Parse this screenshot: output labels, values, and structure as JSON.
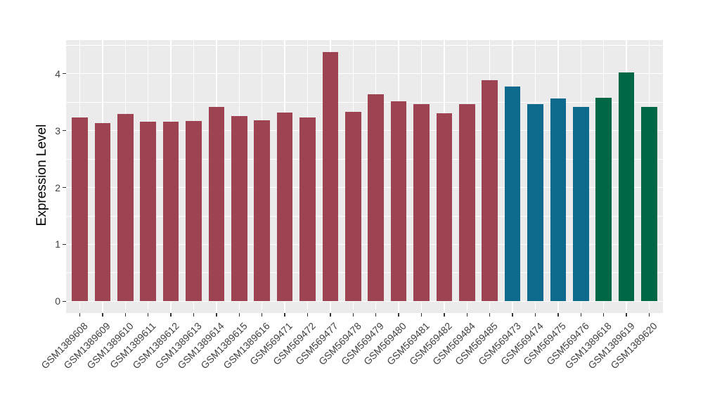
{
  "chart_data": {
    "type": "bar",
    "title": "",
    "xlabel": "",
    "ylabel": "Expression Level",
    "legend_position": "none",
    "grid": true,
    "panel_background": "#EBEBEB",
    "gridline_color": "#FFFFFF",
    "tick_color": "#333333",
    "tick_label_color": "#404040",
    "axis_title_color": "#000000",
    "yticks": [
      0,
      1,
      2,
      3,
      4
    ],
    "yticks_minor": [
      0.5,
      1.5,
      2.5,
      3.5,
      4.5
    ],
    "ylim": [
      0,
      4.6
    ],
    "bar_width_fraction": 0.7,
    "group_colors": {
      "maroon": "#9E4352",
      "blue": "#0E6A8C",
      "green": "#006746"
    },
    "categories": [
      "GSM1389608",
      "GSM1389609",
      "GSM1389610",
      "GSM1389611",
      "GSM1389612",
      "GSM1389613",
      "GSM1389614",
      "GSM1389615",
      "GSM1389616",
      "GSM569471",
      "GSM569472",
      "GSM569477",
      "GSM569478",
      "GSM569479",
      "GSM569480",
      "GSM569481",
      "GSM569482",
      "GSM569484",
      "GSM569485",
      "GSM569473",
      "GSM569474",
      "GSM569475",
      "GSM569476",
      "GSM1389618",
      "GSM1389619",
      "GSM1389620"
    ],
    "values": [
      3.23,
      3.13,
      3.29,
      3.15,
      3.15,
      3.17,
      3.41,
      3.25,
      3.18,
      3.32,
      3.23,
      4.38,
      3.33,
      3.64,
      3.52,
      3.47,
      3.3,
      3.47,
      3.88,
      3.77,
      3.47,
      3.56,
      3.41,
      3.58,
      4.02,
      3.42
    ],
    "bar_colors": [
      "#9E4352",
      "#9E4352",
      "#9E4352",
      "#9E4352",
      "#9E4352",
      "#9E4352",
      "#9E4352",
      "#9E4352",
      "#9E4352",
      "#9E4352",
      "#9E4352",
      "#9E4352",
      "#9E4352",
      "#9E4352",
      "#9E4352",
      "#9E4352",
      "#9E4352",
      "#9E4352",
      "#9E4352",
      "#0E6A8C",
      "#0E6A8C",
      "#0E6A8C",
      "#0E6A8C",
      "#006746",
      "#006746",
      "#006746"
    ]
  }
}
